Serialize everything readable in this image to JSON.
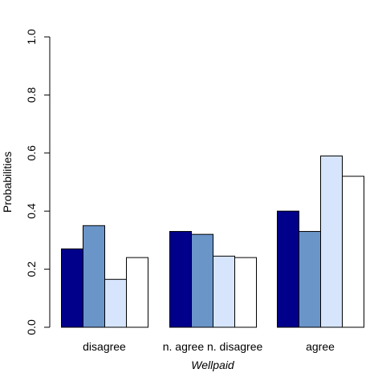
{
  "chart_data": {
    "type": "bar",
    "title": "",
    "xlabel": "Wellpaid",
    "ylabel": "Probabilities",
    "ylim": [
      0,
      1
    ],
    "y_ticks": [
      "0.0",
      "0.2",
      "0.4",
      "0.6",
      "0.8",
      "1.0"
    ],
    "grid": false,
    "legend": "none",
    "categories": [
      "disagree",
      "n. agree n. disagree",
      "agree"
    ],
    "series": [
      {
        "values": [
          0.27,
          0.33,
          0.4
        ],
        "color": "#00008b"
      },
      {
        "values": [
          0.35,
          0.32,
          0.33
        ],
        "color": "#6a95c9"
      },
      {
        "values": [
          0.165,
          0.245,
          0.59
        ],
        "color": "#d6e5fb"
      },
      {
        "values": [
          0.24,
          0.24,
          0.52
        ],
        "color": "#ffffff"
      }
    ]
  }
}
